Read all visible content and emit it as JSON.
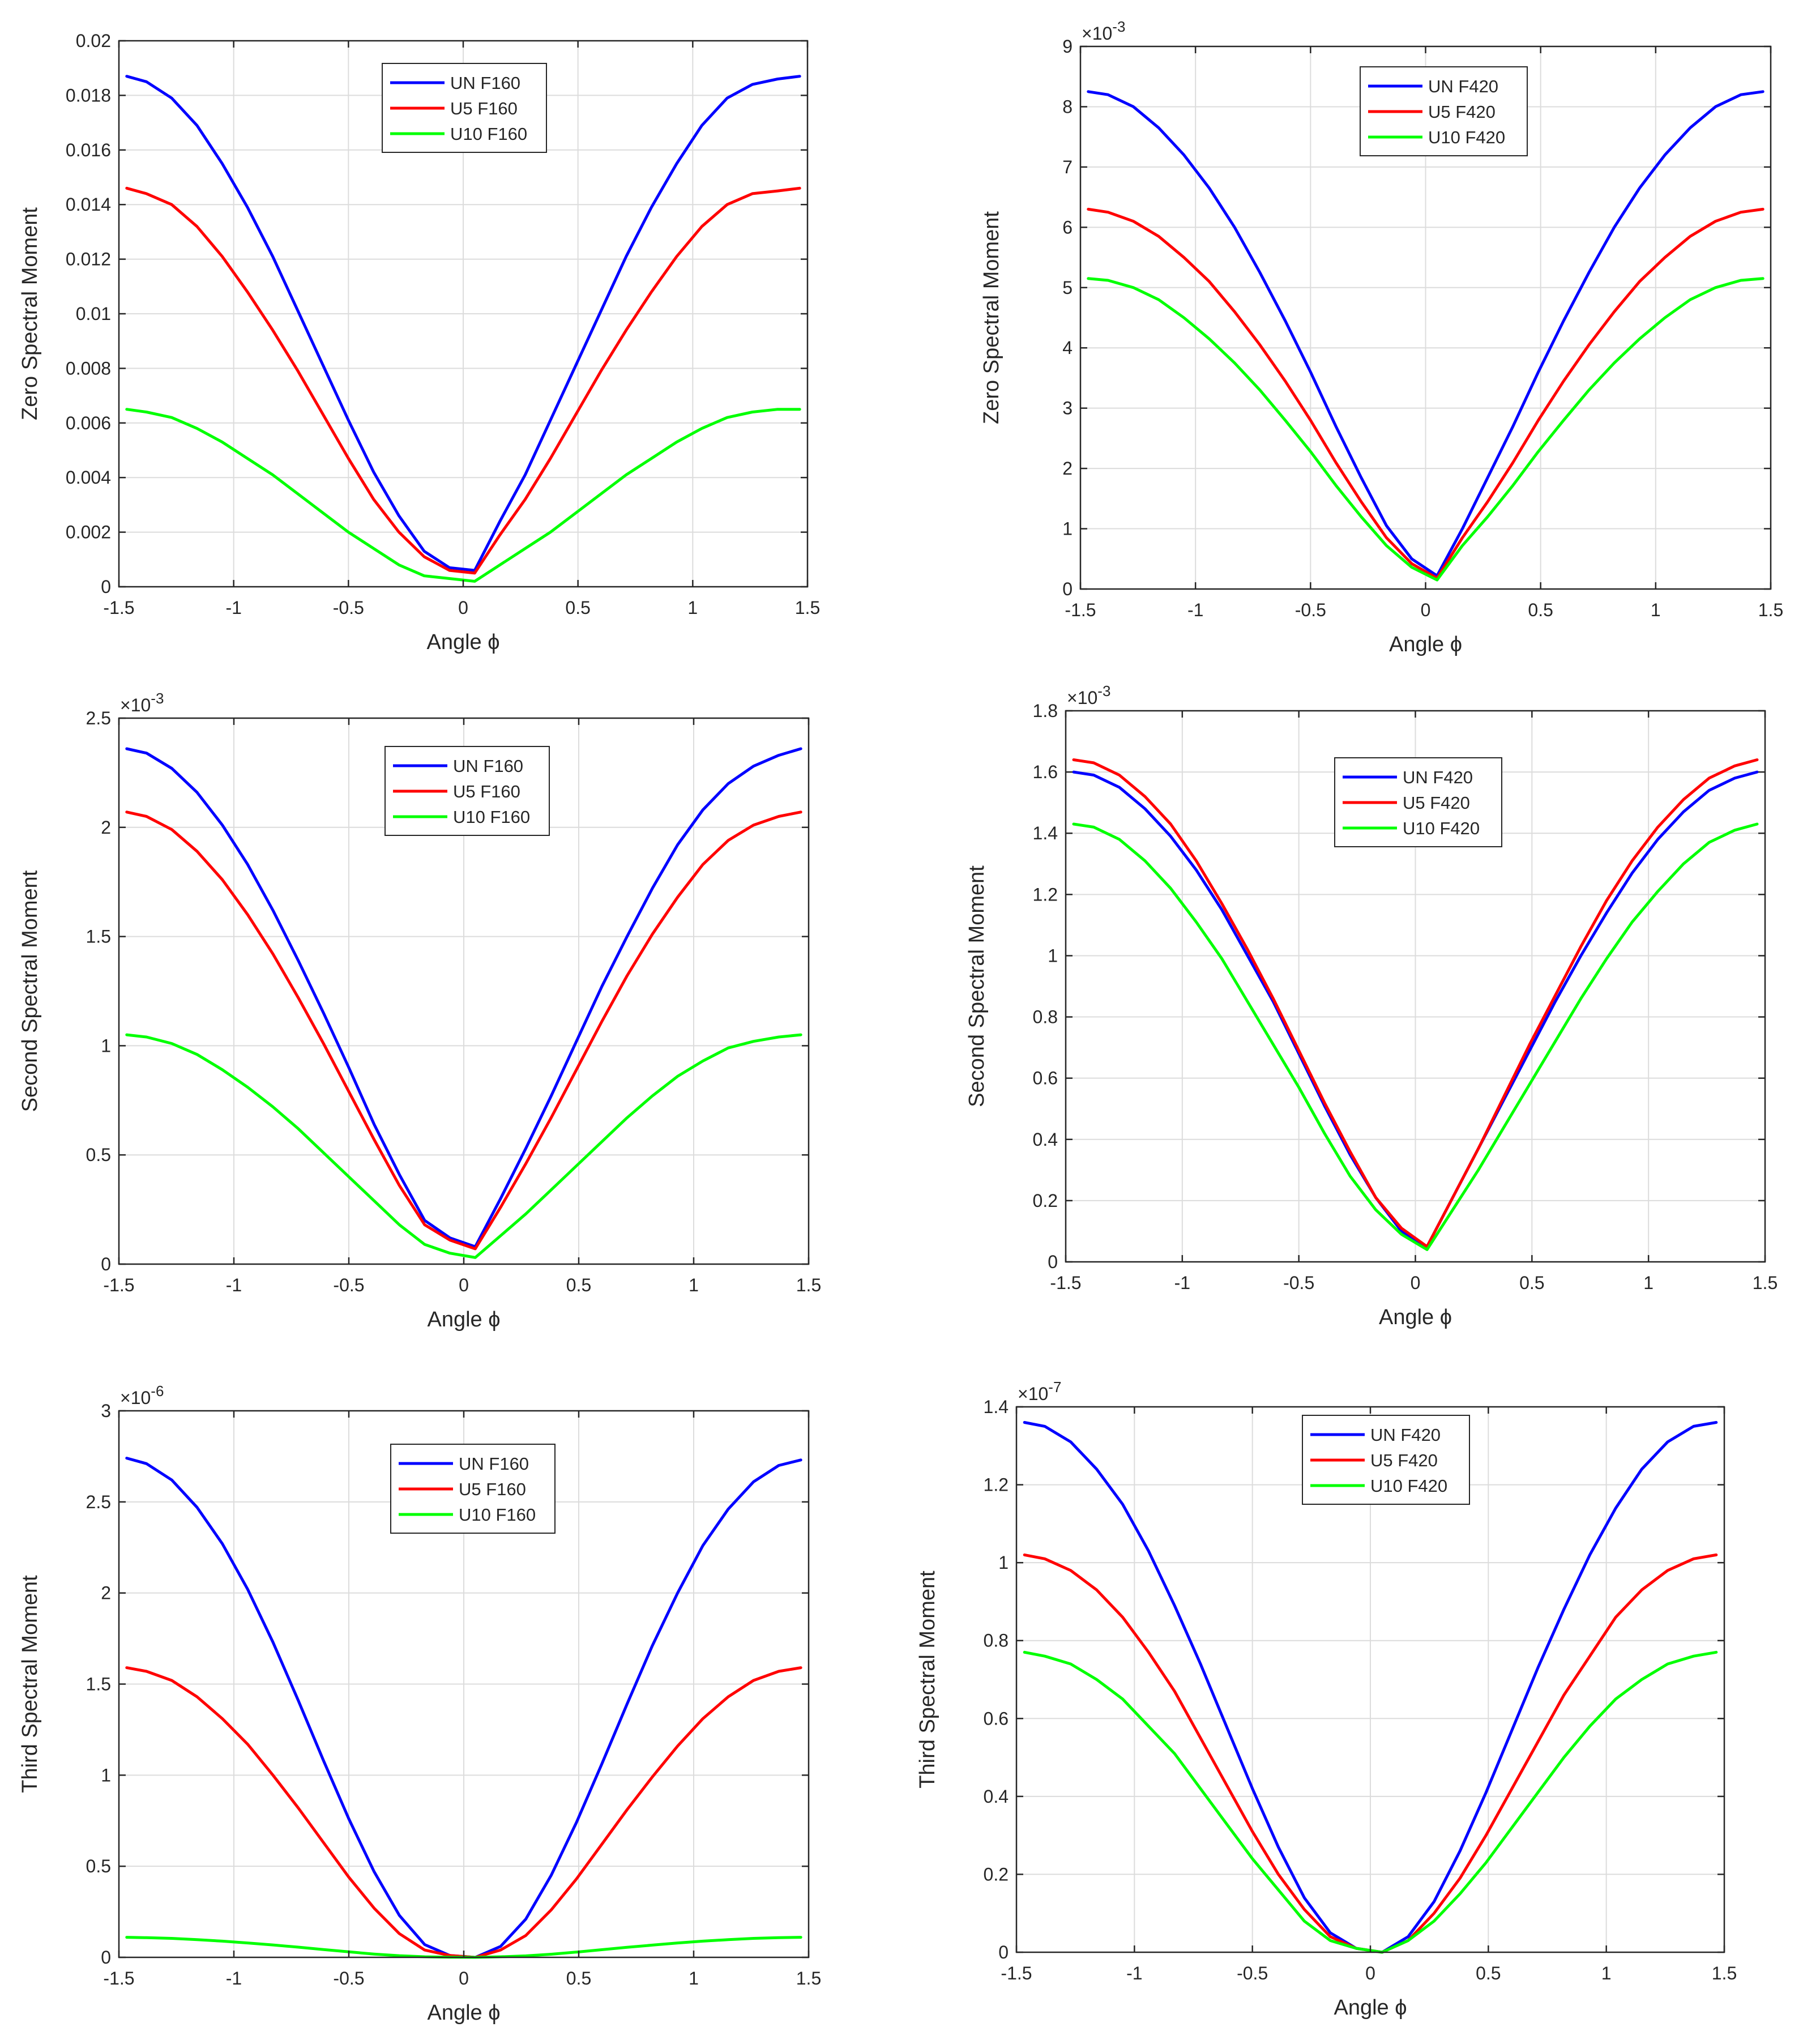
{
  "figure": {
    "x_common": [
      -1.466,
      -1.38,
      -1.27,
      -1.16,
      -1.05,
      -0.94,
      -0.83,
      -0.72,
      -0.61,
      -0.5,
      -0.39,
      -0.28,
      -0.17,
      -0.06,
      0.05,
      0.16,
      0.27,
      0.38,
      0.49,
      0.6,
      0.71,
      0.82,
      0.93,
      1.04,
      1.15,
      1.26,
      1.37,
      1.466
    ]
  },
  "chart_data": [
    {
      "type": "line",
      "panel": "top-left",
      "title": "",
      "xlabel": "Angle ϕ",
      "ylabel": "Zero Spectral Moment",
      "exponent": "",
      "xlim": [
        -1.5,
        1.5
      ],
      "ylim": [
        0,
        0.02
      ],
      "grid": true,
      "xticks": [
        -1.5,
        -1,
        -0.5,
        0,
        0.5,
        1,
        1.5
      ],
      "xtick_labels": [
        "-1.5",
        "-1",
        "-0.5",
        "0",
        "0.5",
        "1",
        "1.5"
      ],
      "yticks": [
        0,
        0.002,
        0.004,
        0.006,
        0.008,
        0.01,
        0.012,
        0.014,
        0.016,
        0.018,
        0.02
      ],
      "ytick_labels": [
        "0",
        "0.002",
        "0.004",
        "0.006",
        "0.008",
        "0.01",
        "0.012",
        "0.014",
        "0.016",
        "0.018",
        "0.02"
      ],
      "legend": {
        "position": "top-center"
      },
      "series": [
        {
          "name": "UN F160",
          "color": "#0000ff",
          "values": [
            0.0187,
            0.0185,
            0.0179,
            0.0169,
            0.0155,
            0.0139,
            0.0121,
            0.0101,
            0.0081,
            0.0061,
            0.0042,
            0.0026,
            0.0013,
            0.0007,
            0.0006,
            0.0024,
            0.0041,
            0.0061,
            0.0081,
            0.0101,
            0.0121,
            0.0139,
            0.0155,
            0.0169,
            0.0179,
            0.0184,
            0.0186,
            0.0187
          ]
        },
        {
          "name": "U5 F160",
          "color": "#ff0000",
          "values": [
            0.0146,
            0.0144,
            0.014,
            0.0132,
            0.0121,
            0.0108,
            0.0094,
            0.0079,
            0.0063,
            0.0047,
            0.0032,
            0.002,
            0.0011,
            0.0006,
            0.0005,
            0.0019,
            0.0032,
            0.0047,
            0.0063,
            0.0079,
            0.0094,
            0.0108,
            0.0121,
            0.0132,
            0.014,
            0.0144,
            0.0145,
            0.0146
          ]
        },
        {
          "name": "U10 F160",
          "color": "#00ff00",
          "values": [
            0.0065,
            0.0064,
            0.0062,
            0.0058,
            0.0053,
            0.0047,
            0.0041,
            0.0034,
            0.0027,
            0.002,
            0.0014,
            0.0008,
            0.0004,
            0.0003,
            0.0002,
            0.0008,
            0.0014,
            0.002,
            0.0027,
            0.0034,
            0.0041,
            0.0047,
            0.0053,
            0.0058,
            0.0062,
            0.0064,
            0.0065,
            0.0065
          ]
        }
      ]
    },
    {
      "type": "line",
      "panel": "top-right",
      "title": "",
      "xlabel": "Angle ϕ",
      "ylabel": "Zero Spectral Moment",
      "exponent": "-3",
      "xlim": [
        -1.5,
        1.5
      ],
      "ylim": [
        0,
        9
      ],
      "grid": true,
      "xticks": [
        -1.5,
        -1,
        -0.5,
        0,
        0.5,
        1,
        1.5
      ],
      "xtick_labels": [
        "-1.5",
        "-1",
        "-0.5",
        "0",
        "0.5",
        "1",
        "1.5"
      ],
      "yticks": [
        0,
        1,
        2,
        3,
        4,
        5,
        6,
        7,
        8,
        9
      ],
      "ytick_labels": [
        "0",
        "1",
        "2",
        "3",
        "4",
        "5",
        "6",
        "7",
        "8",
        "9"
      ],
      "legend": {
        "position": "top-center"
      },
      "series": [
        {
          "name": "UN F420",
          "color": "#0000ff",
          "values": [
            8.25,
            8.2,
            8.0,
            7.65,
            7.2,
            6.65,
            6.0,
            5.25,
            4.45,
            3.6,
            2.7,
            1.85,
            1.05,
            0.5,
            0.22,
            1.0,
            1.85,
            2.7,
            3.6,
            4.45,
            5.25,
            6.0,
            6.65,
            7.2,
            7.65,
            8.0,
            8.2,
            8.25
          ]
        },
        {
          "name": "U5 F420",
          "color": "#ff0000",
          "values": [
            6.3,
            6.25,
            6.1,
            5.85,
            5.5,
            5.1,
            4.6,
            4.05,
            3.45,
            2.8,
            2.1,
            1.45,
            0.85,
            0.42,
            0.18,
            0.85,
            1.45,
            2.1,
            2.8,
            3.45,
            4.05,
            4.6,
            5.1,
            5.5,
            5.85,
            6.1,
            6.25,
            6.3
          ]
        },
        {
          "name": "U10 F420",
          "color": "#00ff00",
          "values": [
            5.15,
            5.12,
            5.0,
            4.8,
            4.5,
            4.15,
            3.75,
            3.3,
            2.8,
            2.28,
            1.72,
            1.2,
            0.72,
            0.36,
            0.15,
            0.72,
            1.2,
            1.72,
            2.28,
            2.8,
            3.3,
            3.75,
            4.15,
            4.5,
            4.8,
            5.0,
            5.12,
            5.15
          ]
        }
      ]
    },
    {
      "type": "line",
      "panel": "middle-left",
      "title": "",
      "xlabel": "Angle ϕ",
      "ylabel": "Second Spectral Moment",
      "exponent": "-3",
      "xlim": [
        -1.5,
        1.5
      ],
      "ylim": [
        0,
        2.5
      ],
      "grid": true,
      "xticks": [
        -1.5,
        -1,
        -0.5,
        0,
        0.5,
        1,
        1.5
      ],
      "xtick_labels": [
        "-1.5",
        "-1",
        "-0.5",
        "0",
        "0.5",
        "1",
        "1.5"
      ],
      "yticks": [
        0,
        0.5,
        1,
        1.5,
        2,
        2.5
      ],
      "ytick_labels": [
        "0",
        "0.5",
        "1",
        "1.5",
        "2",
        "2.5"
      ],
      "legend": {
        "position": "top-center"
      },
      "series": [
        {
          "name": "UN F160",
          "color": "#0000ff",
          "values": [
            2.36,
            2.34,
            2.27,
            2.16,
            2.01,
            1.83,
            1.62,
            1.39,
            1.15,
            0.9,
            0.64,
            0.41,
            0.2,
            0.12,
            0.08,
            0.3,
            0.53,
            0.77,
            1.02,
            1.27,
            1.5,
            1.72,
            1.92,
            2.08,
            2.2,
            2.28,
            2.33,
            2.36
          ]
        },
        {
          "name": "U5 F160",
          "color": "#ff0000",
          "values": [
            2.07,
            2.05,
            1.99,
            1.89,
            1.76,
            1.6,
            1.42,
            1.22,
            1.01,
            0.79,
            0.57,
            0.36,
            0.18,
            0.11,
            0.07,
            0.26,
            0.46,
            0.67,
            0.89,
            1.11,
            1.32,
            1.51,
            1.68,
            1.83,
            1.94,
            2.01,
            2.05,
            2.07
          ]
        },
        {
          "name": "U10 F160",
          "color": "#00ff00",
          "values": [
            1.05,
            1.04,
            1.01,
            0.96,
            0.89,
            0.81,
            0.72,
            0.62,
            0.51,
            0.4,
            0.29,
            0.18,
            0.09,
            0.05,
            0.03,
            0.13,
            0.23,
            0.34,
            0.45,
            0.56,
            0.67,
            0.77,
            0.86,
            0.93,
            0.99,
            1.02,
            1.04,
            1.05
          ]
        }
      ]
    },
    {
      "type": "line",
      "panel": "middle-right",
      "title": "",
      "xlabel": "Angle ϕ",
      "ylabel": "Second Spectral Moment",
      "exponent": "-3",
      "xlim": [
        -1.5,
        1.5
      ],
      "ylim": [
        0,
        1.8
      ],
      "grid": true,
      "xticks": [
        -1.5,
        -1,
        -0.5,
        0,
        0.5,
        1,
        1.5
      ],
      "xtick_labels": [
        "-1.5",
        "-1",
        "-0.5",
        "0",
        "0.5",
        "1",
        "1.5"
      ],
      "yticks": [
        0,
        0.2,
        0.4,
        0.6,
        0.8,
        1,
        1.2,
        1.4,
        1.6,
        1.8
      ],
      "ytick_labels": [
        "0",
        "0.2",
        "0.4",
        "0.6",
        "0.8",
        "1",
        "1.2",
        "1.4",
        "1.6",
        "1.8"
      ],
      "legend": {
        "position": "top-left"
      },
      "series": [
        {
          "name": "UN F420",
          "color": "#0000ff",
          "values": [
            1.6,
            1.59,
            1.55,
            1.48,
            1.39,
            1.28,
            1.15,
            1.0,
            0.85,
            0.68,
            0.51,
            0.35,
            0.21,
            0.1,
            0.05,
            0.21,
            0.37,
            0.53,
            0.69,
            0.85,
            1.0,
            1.14,
            1.27,
            1.38,
            1.47,
            1.54,
            1.58,
            1.6
          ]
        },
        {
          "name": "U5 F420",
          "color": "#ff0000",
          "values": [
            1.64,
            1.63,
            1.59,
            1.52,
            1.43,
            1.31,
            1.17,
            1.02,
            0.86,
            0.69,
            0.52,
            0.36,
            0.21,
            0.11,
            0.05,
            0.21,
            0.37,
            0.54,
            0.71,
            0.87,
            1.03,
            1.18,
            1.31,
            1.42,
            1.51,
            1.58,
            1.62,
            1.64
          ]
        },
        {
          "name": "U10 F420",
          "color": "#00ff00",
          "values": [
            1.43,
            1.42,
            1.38,
            1.31,
            1.22,
            1.11,
            0.99,
            0.85,
            0.71,
            0.57,
            0.42,
            0.28,
            0.17,
            0.09,
            0.04,
            0.17,
            0.3,
            0.44,
            0.58,
            0.72,
            0.86,
            0.99,
            1.11,
            1.21,
            1.3,
            1.37,
            1.41,
            1.43
          ]
        }
      ]
    },
    {
      "type": "line",
      "panel": "bottom-left",
      "title": "",
      "xlabel": "Angle ϕ",
      "ylabel": "Third Spectral Moment",
      "exponent": "-6",
      "xlim": [
        -1.5,
        1.5
      ],
      "ylim": [
        0,
        3
      ],
      "grid": true,
      "xticks": [
        -1.5,
        -1,
        -0.5,
        0,
        0.5,
        1,
        1.5
      ],
      "xtick_labels": [
        "-1.5",
        "-1",
        "-0.5",
        "0",
        "0.5",
        "1",
        "1.5"
      ],
      "yticks": [
        0,
        0.5,
        1,
        1.5,
        2,
        2.5,
        3
      ],
      "ytick_labels": [
        "0",
        "0.5",
        "1",
        "1.5",
        "2",
        "2.5",
        "3"
      ],
      "legend": {
        "position": "top-center"
      },
      "series": [
        {
          "name": "UN F160",
          "color": "#0000ff",
          "values": [
            2.74,
            2.71,
            2.62,
            2.47,
            2.27,
            2.02,
            1.73,
            1.41,
            1.08,
            0.76,
            0.47,
            0.23,
            0.07,
            0.01,
            0.0,
            0.06,
            0.21,
            0.45,
            0.74,
            1.06,
            1.39,
            1.71,
            2.0,
            2.26,
            2.46,
            2.61,
            2.7,
            2.73
          ]
        },
        {
          "name": "U5 F160",
          "color": "#ff0000",
          "values": [
            1.59,
            1.57,
            1.52,
            1.43,
            1.31,
            1.17,
            1.0,
            0.82,
            0.63,
            0.44,
            0.27,
            0.13,
            0.04,
            0.01,
            0.0,
            0.04,
            0.12,
            0.26,
            0.43,
            0.62,
            0.81,
            0.99,
            1.16,
            1.31,
            1.43,
            1.52,
            1.57,
            1.59
          ]
        },
        {
          "name": "U10 F160",
          "color": "#00ff00",
          "values": [
            0.11,
            0.108,
            0.104,
            0.097,
            0.089,
            0.079,
            0.068,
            0.056,
            0.043,
            0.03,
            0.018,
            0.009,
            0.003,
            0.001,
            0.0,
            0.003,
            0.008,
            0.017,
            0.029,
            0.042,
            0.055,
            0.067,
            0.079,
            0.089,
            0.097,
            0.104,
            0.108,
            0.11
          ]
        }
      ]
    },
    {
      "type": "line",
      "panel": "bottom-right",
      "title": "",
      "xlabel": "Angle ϕ",
      "ylabel": "Third Spectral Moment",
      "exponent": "-7",
      "xlim": [
        -1.5,
        1.5
      ],
      "ylim": [
        0,
        1.4
      ],
      "grid": true,
      "xticks": [
        -1.5,
        -1,
        -0.5,
        0,
        0.5,
        1,
        1.5
      ],
      "xtick_labels": [
        "-1.5",
        "-1",
        "-0.5",
        "0",
        "0.5",
        "1",
        "1.5"
      ],
      "yticks": [
        0,
        0.2,
        0.4,
        0.6,
        0.8,
        1,
        1.2,
        1.4
      ],
      "ytick_labels": [
        "0",
        "0.2",
        "0.4",
        "0.6",
        "0.8",
        "1",
        "1.2",
        "1.4"
      ],
      "legend": {
        "position": "top-center"
      },
      "series": [
        {
          "name": "UN F420",
          "color": "#0000ff",
          "values": [
            1.36,
            1.35,
            1.31,
            1.24,
            1.15,
            1.03,
            0.89,
            0.74,
            0.58,
            0.42,
            0.27,
            0.14,
            0.05,
            0.01,
            0.0,
            0.04,
            0.13,
            0.26,
            0.41,
            0.57,
            0.73,
            0.88,
            1.02,
            1.14,
            1.24,
            1.31,
            1.35,
            1.36
          ]
        },
        {
          "name": "U5 F420",
          "color": "#ff0000",
          "values": [
            1.02,
            1.01,
            0.98,
            0.93,
            0.86,
            0.77,
            0.67,
            0.55,
            0.43,
            0.31,
            0.2,
            0.11,
            0.04,
            0.01,
            0.0,
            0.03,
            0.1,
            0.19,
            0.3,
            0.42,
            0.54,
            0.66,
            0.76,
            0.86,
            0.93,
            0.98,
            1.01,
            1.02
          ]
        },
        {
          "name": "U10 F420",
          "color": "#00ff00",
          "values": [
            0.77,
            0.76,
            0.74,
            0.7,
            0.65,
            0.58,
            0.51,
            0.42,
            0.33,
            0.24,
            0.16,
            0.08,
            0.03,
            0.01,
            0.0,
            0.03,
            0.08,
            0.15,
            0.23,
            0.32,
            0.41,
            0.5,
            0.58,
            0.65,
            0.7,
            0.74,
            0.76,
            0.77
          ]
        }
      ]
    }
  ]
}
